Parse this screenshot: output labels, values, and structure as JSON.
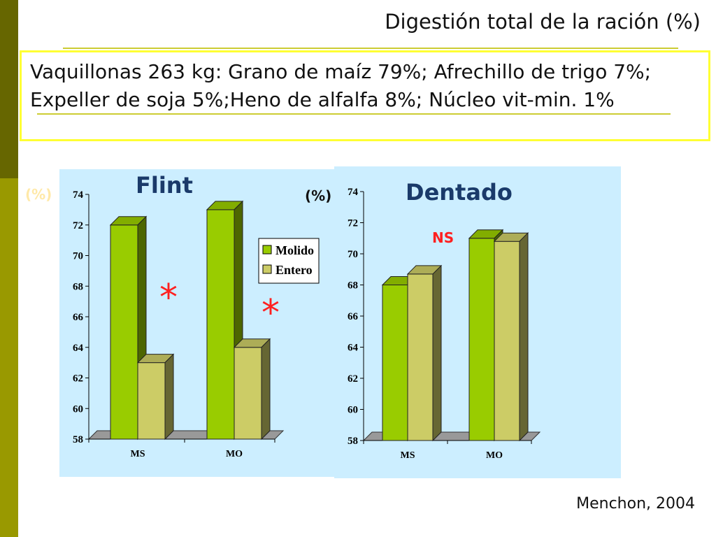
{
  "slide": {
    "title": "Digestión total de la ración (%)",
    "info": "Vaquillonas 263 kg: Grano de maíz 79%; Afrechillo de trigo 7%; Expeller de soja 5%;Heno de alfalfa 8%; Núcleo vit-min. 1%",
    "source": "Menchon, 2004"
  },
  "colors": {
    "sidebar": [
      "#666600",
      "#999900",
      "#cccc66",
      "#999900"
    ],
    "panel_bg": "#cceeff",
    "molido": "#99cc00",
    "entero": "#cccc66",
    "accent_line": "#cccc33",
    "significance": "#ff2020",
    "title_blue": "#1a3a6a"
  },
  "chart_data": [
    {
      "type": "bar",
      "title": "Flint",
      "ylabel": "(%)",
      "categories": [
        "MS",
        "MO"
      ],
      "series": [
        {
          "name": "Molido",
          "values": [
            72,
            73
          ]
        },
        {
          "name": "Entero",
          "values": [
            63,
            64
          ]
        }
      ],
      "ylim": [
        58,
        74
      ],
      "yticks": [
        "58",
        "60",
        "62",
        "64",
        "66",
        "68",
        "70",
        "72",
        "74"
      ],
      "legend": "right",
      "annotations": [
        "*",
        "*"
      ]
    },
    {
      "type": "bar",
      "title": "Dentado",
      "ylabel": "(%)",
      "categories": [
        "MS",
        "MO"
      ],
      "series": [
        {
          "name": "Molido",
          "values": [
            68,
            71
          ]
        },
        {
          "name": "Entero",
          "values": [
            68.7,
            70.8
          ]
        }
      ],
      "ylim": [
        58,
        74
      ],
      "yticks": [
        "58",
        "60",
        "62",
        "64",
        "66",
        "68",
        "70",
        "72",
        "74"
      ],
      "annotations": [
        "NS"
      ]
    }
  ]
}
